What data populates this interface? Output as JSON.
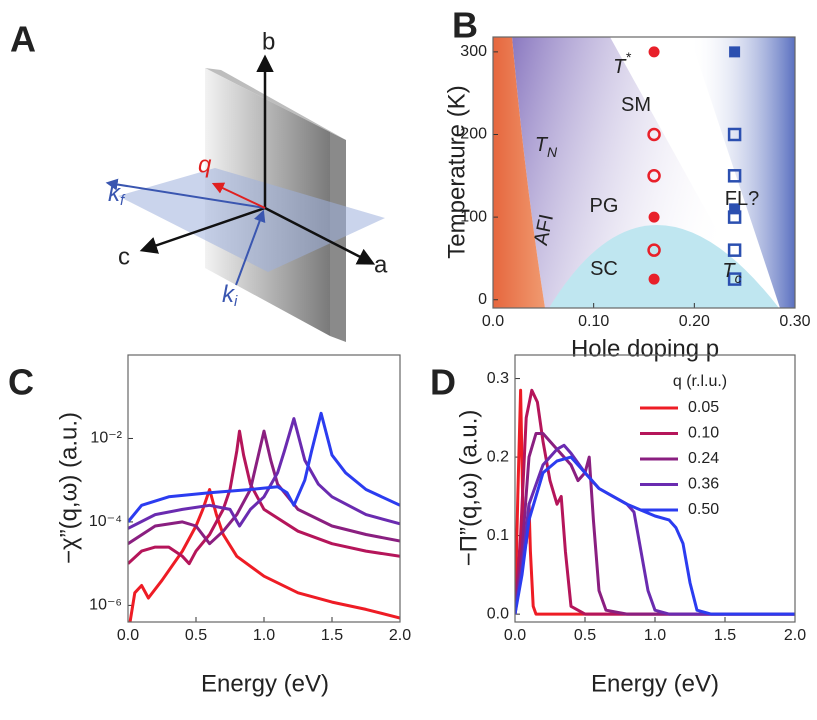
{
  "diagram": {
    "panel": "A",
    "b": "b",
    "a": "a",
    "c": "c",
    "q": "q",
    "k_f": {
      "text": "k",
      "sub": "f"
    },
    "k_i": {
      "text": "k",
      "sub": "i"
    }
  },
  "chart_data": [
    {
      "type": "scatter",
      "panel": "B",
      "x_label": "Hole doping p",
      "y_label": "Temperature (K)",
      "xlim": [
        0,
        0.3
      ],
      "ylim": [
        -10,
        318
      ],
      "xticks": [
        {
          "value": 0,
          "label": "0.0"
        },
        {
          "value": 0.1,
          "label": "0.10"
        },
        {
          "value": 0.2,
          "label": "0.20"
        },
        {
          "value": 0.3,
          "label": "0.30"
        }
      ],
      "yticks": [
        0,
        100,
        200,
        300
      ],
      "series": [
        {
          "color": "#e8202a",
          "marker": "circle",
          "filled": true,
          "x": [
            0.16,
            0.16,
            0.16
          ],
          "values": [
            300,
            100,
            25
          ]
        },
        {
          "color": "#e8202a",
          "marker": "circle",
          "filled": false,
          "x": [
            0.16,
            0.16,
            0.16
          ],
          "values": [
            200,
            150,
            60
          ]
        },
        {
          "color": "#2b4fb0",
          "marker": "square",
          "filled": true,
          "x": [
            0.24,
            0.24
          ],
          "values": [
            300,
            110
          ]
        },
        {
          "color": "#2b4fb0",
          "marker": "square",
          "filled": false,
          "x": [
            0.24,
            0.24,
            0.24,
            0.24,
            0.24
          ],
          "values": [
            200,
            150,
            100,
            60,
            25
          ]
        }
      ],
      "annotations": [
        {
          "text": "T",
          "sup": "*"
        },
        {
          "text": "SM"
        },
        {
          "text": "T",
          "sub": "N"
        },
        {
          "text": "PG"
        },
        {
          "text": "AFI"
        },
        {
          "text": "SC"
        },
        {
          "text": "FL?"
        },
        {
          "text": "T",
          "sub": "c"
        }
      ]
    },
    {
      "type": "line",
      "panel": "C",
      "x_label": "Energy (eV)",
      "y_label": "−χ”(q,ω) (a.u.)",
      "yscale": "log",
      "xlim": [
        0,
        2
      ],
      "ylim": [
        4e-07,
        1
      ],
      "xticks": [
        {
          "value": 0,
          "label": "0.0"
        },
        {
          "value": 0.5,
          "label": "0.5"
        },
        {
          "value": 1,
          "label": "1.0"
        },
        {
          "value": 1.5,
          "label": "1.5"
        },
        {
          "value": 2,
          "label": "2.0"
        }
      ],
      "yticks": [
        {
          "value": 1e-06,
          "label": "10⁻⁶"
        },
        {
          "value": 0.0001,
          "label": "10⁻⁴"
        },
        {
          "value": 0.01,
          "label": "10⁻²"
        }
      ],
      "series": [
        {
          "color": "#ee1c25",
          "x": [
            0,
            0.05,
            0.1,
            0.15,
            0.25,
            0.4,
            0.5,
            0.55,
            0.6,
            0.65,
            0.7,
            0.8,
            1.0,
            1.25,
            1.5,
            1.75,
            2.0
          ],
          "values": [
            2e-07,
            2e-06,
            3e-06,
            1.5e-06,
            4e-06,
            2e-05,
            8e-05,
            0.0002,
            0.0006,
            0.00015,
            5e-05,
            1.5e-05,
            5e-06,
            2e-06,
            1.2e-06,
            8e-07,
            5e-07
          ]
        },
        {
          "color": "#b5155a",
          "x": [
            0,
            0.1,
            0.2,
            0.3,
            0.4,
            0.45,
            0.5,
            0.6,
            0.7,
            0.75,
            0.8,
            0.82,
            0.85,
            0.9,
            1.0,
            1.25,
            1.5,
            1.75,
            2.0
          ],
          "values": [
            1e-05,
            2e-05,
            2.5e-05,
            2.5e-05,
            1.5e-05,
            1e-05,
            2e-05,
            5e-05,
            0.0002,
            0.0006,
            0.005,
            0.015,
            0.004,
            0.0008,
            0.0002,
            6e-05,
            3e-05,
            2e-05,
            1.5e-05
          ]
        },
        {
          "color": "#8a1f80",
          "x": [
            0,
            0.2,
            0.4,
            0.5,
            0.6,
            0.7,
            0.8,
            0.9,
            0.95,
            1.0,
            1.05,
            1.1,
            1.25,
            1.5,
            1.75,
            2.0
          ],
          "values": [
            3e-05,
            8e-05,
            0.0001,
            8e-05,
            3e-05,
            6e-05,
            0.00015,
            0.0006,
            0.003,
            0.015,
            0.003,
            0.0008,
            0.0002,
            8e-05,
            5e-05,
            3.5e-05
          ]
        },
        {
          "color": "#6a2bb0",
          "x": [
            0,
            0.2,
            0.4,
            0.6,
            0.75,
            0.82,
            0.9,
            1.0,
            1.1,
            1.15,
            1.22,
            1.3,
            1.4,
            1.5,
            1.75,
            2.0
          ],
          "values": [
            7e-05,
            0.00015,
            0.0002,
            0.00025,
            0.0002,
            8e-05,
            0.0002,
            0.0004,
            0.0015,
            0.005,
            0.03,
            0.003,
            0.0008,
            0.0004,
            0.00015,
            9e-05
          ]
        },
        {
          "color": "#2b3cf0",
          "x": [
            0,
            0.1,
            0.3,
            0.6,
            0.9,
            1.1,
            1.17,
            1.22,
            1.3,
            1.35,
            1.42,
            1.5,
            1.6,
            1.75,
            2.0
          ],
          "values": [
            0.0001,
            0.00025,
            0.0004,
            0.0005,
            0.0006,
            0.0007,
            0.0005,
            0.00025,
            0.001,
            0.005,
            0.04,
            0.004,
            0.0015,
            0.0006,
            0.00025
          ]
        }
      ]
    },
    {
      "type": "line",
      "panel": "D",
      "x_label": "Energy (eV)",
      "y_label": "−Π”(q,ω) (a.u.)",
      "xlim": [
        0,
        2
      ],
      "ylim": [
        -0.01,
        0.33
      ],
      "xticks": [
        {
          "value": 0,
          "label": "0.0"
        },
        {
          "value": 0.5,
          "label": "0.5"
        },
        {
          "value": 1,
          "label": "1.0"
        },
        {
          "value": 1.5,
          "label": "1.5"
        },
        {
          "value": 2,
          "label": "2.0"
        }
      ],
      "yticks": [
        {
          "value": 0,
          "label": "0.0"
        },
        0.1,
        0.2,
        0.3
      ],
      "legend": {
        "title": "q (r.l.u.)",
        "corner": "upper right"
      },
      "series": [
        {
          "name": "0.05",
          "color": "#ee1c25",
          "x": [
            0,
            0.02,
            0.04,
            0.06,
            0.08,
            0.09,
            0.1,
            0.11,
            0.13,
            0.15,
            2.0
          ],
          "values": [
            0,
            0.15,
            0.285,
            0.1,
            0.09,
            0.11,
            0.14,
            0.08,
            0.01,
            0,
            0
          ]
        },
        {
          "name": "0.10",
          "color": "#b5155a",
          "x": [
            0,
            0.04,
            0.08,
            0.12,
            0.16,
            0.2,
            0.25,
            0.3,
            0.33,
            0.36,
            0.4,
            0.5,
            2.0
          ],
          "values": [
            0,
            0.1,
            0.25,
            0.285,
            0.27,
            0.22,
            0.17,
            0.14,
            0.15,
            0.08,
            0.01,
            0,
            0
          ]
        },
        {
          "name": "0.24",
          "color": "#8a1f80",
          "x": [
            0,
            0.05,
            0.1,
            0.15,
            0.2,
            0.3,
            0.4,
            0.45,
            0.5,
            0.53,
            0.56,
            0.6,
            0.65,
            0.8,
            2.0
          ],
          "values": [
            0,
            0.08,
            0.2,
            0.23,
            0.23,
            0.21,
            0.19,
            0.17,
            0.18,
            0.2,
            0.12,
            0.03,
            0.005,
            0,
            0
          ]
        },
        {
          "name": "0.36",
          "color": "#6a2bb0",
          "x": [
            0,
            0.05,
            0.1,
            0.2,
            0.3,
            0.35,
            0.4,
            0.5,
            0.6,
            0.7,
            0.8,
            0.85,
            0.9,
            0.95,
            1.0,
            1.1,
            2.0
          ],
          "values": [
            0,
            0.06,
            0.14,
            0.19,
            0.21,
            0.215,
            0.205,
            0.18,
            0.16,
            0.15,
            0.14,
            0.13,
            0.08,
            0.03,
            0.005,
            0,
            0
          ]
        },
        {
          "name": "0.50",
          "color": "#2b3cf0",
          "x": [
            0,
            0.05,
            0.1,
            0.2,
            0.3,
            0.4,
            0.5,
            0.6,
            0.8,
            1.0,
            1.1,
            1.15,
            1.2,
            1.25,
            1.3,
            1.4,
            2.0
          ],
          "values": [
            0,
            0.05,
            0.12,
            0.18,
            0.195,
            0.2,
            0.18,
            0.16,
            0.14,
            0.125,
            0.12,
            0.11,
            0.09,
            0.04,
            0.005,
            0,
            0
          ]
        }
      ]
    }
  ]
}
